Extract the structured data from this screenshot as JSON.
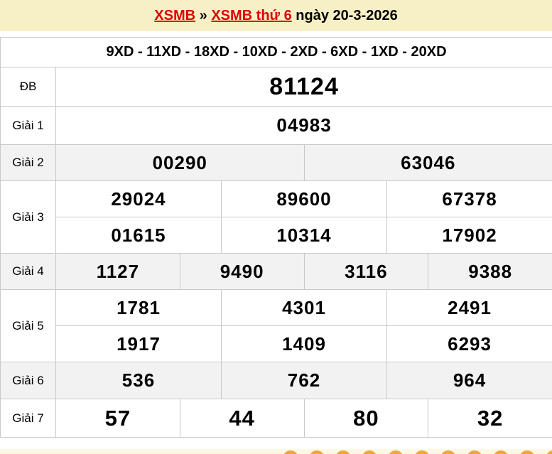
{
  "breadcrumb": {
    "link1": "XSMB",
    "separator": "»",
    "link2": "XSMB thứ 6",
    "date_text": "ngày 20-3-2026"
  },
  "ticket_codes": {
    "text": "9XD - 11XD - 18XD - 10XD - 2XD - 6XD - 1XD - 20XD"
  },
  "results": {
    "rows": [
      {
        "label": "ĐB",
        "numbers": [
          [
            "81124"
          ]
        ]
      },
      {
        "label": "Giải 1",
        "numbers": [
          [
            "04983"
          ]
        ]
      },
      {
        "label": "Giải 2",
        "numbers": [
          [
            "00290",
            "63046"
          ]
        ]
      },
      {
        "label": "Giải 3",
        "numbers": [
          [
            "29024",
            "89600",
            "67378"
          ],
          [
            "01615",
            "10314",
            "17902"
          ]
        ]
      },
      {
        "label": "Giải 4",
        "numbers": [
          [
            "1127",
            "9490",
            "3116",
            "9388"
          ]
        ]
      },
      {
        "label": "Giải 5",
        "numbers": [
          [
            "1781",
            "4301",
            "2491"
          ],
          [
            "1917",
            "1409",
            "6293"
          ]
        ]
      },
      {
        "label": "Giải 6",
        "numbers": [
          [
            "536",
            "762",
            "964"
          ]
        ]
      },
      {
        "label": "Giải 7",
        "numbers": [
          [
            "57",
            "44",
            "80",
            "32"
          ]
        ]
      }
    ]
  },
  "colors": {
    "bar_yellow": "#f7f0c6",
    "band_yellow": "#fdf8e2",
    "link_red": "#dd0000",
    "accent_red": "#e8262d",
    "header_blue": "#1560a8",
    "row_alt_gray": "#f2f2f2",
    "border_gray": "#c9c9c9",
    "ball_orange": "#f2a53c"
  }
}
